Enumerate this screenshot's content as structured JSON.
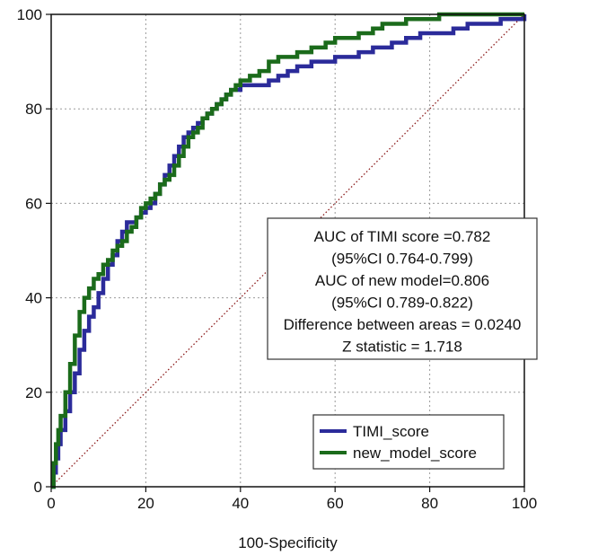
{
  "chart_data": {
    "type": "line",
    "title": "",
    "xlabel": "100-Specificity",
    "ylabel": "",
    "xlim": [
      0,
      100
    ],
    "ylim": [
      0,
      100
    ],
    "xticks": [
      0,
      20,
      40,
      60,
      80,
      100
    ],
    "yticks": [
      0,
      20,
      40,
      60,
      80,
      100
    ],
    "grid": true,
    "legend_position": "bottom-right",
    "annotation_lines": [
      "AUC of TIMI score =0.782",
      "(95%CI 0.764-0.799)",
      "AUC of new model=0.806",
      "(95%CI 0.789-0.822)",
      "Difference between areas = 0.0240",
      "Z statistic = 1.718"
    ],
    "reference_line": {
      "x": [
        0,
        100
      ],
      "y": [
        0,
        100
      ],
      "color": "#8b1a1a",
      "style": "dotted"
    },
    "series": [
      {
        "name": "TIMI_score",
        "color": "#2b2b9a",
        "x": [
          0,
          0.5,
          1,
          1.5,
          2,
          3,
          4,
          5,
          6,
          7,
          8,
          9,
          10,
          11,
          12,
          13,
          14,
          15,
          16,
          17,
          18,
          19,
          20,
          21,
          22,
          23,
          24,
          25,
          26,
          27,
          28,
          29,
          30,
          31,
          32,
          33,
          34,
          35,
          36,
          37,
          38,
          39,
          40,
          42,
          44,
          46,
          48,
          50,
          52,
          55,
          58,
          60,
          62,
          65,
          68,
          70,
          72,
          75,
          78,
          80,
          82,
          85,
          88,
          90,
          92,
          95,
          97,
          100
        ],
        "y": [
          0,
          3,
          6,
          9,
          12,
          16,
          20,
          24,
          29,
          33,
          36,
          38,
          41,
          44,
          47,
          49,
          52,
          54,
          56,
          56,
          57,
          58,
          59,
          60,
          62,
          64,
          66,
          68,
          70,
          72,
          74,
          75,
          76,
          77,
          78,
          79,
          80,
          81,
          82,
          83,
          84,
          84,
          85,
          85,
          85,
          86,
          87,
          88,
          89,
          90,
          90,
          91,
          91,
          92,
          93,
          93,
          94,
          95,
          96,
          96,
          96,
          97,
          98,
          98,
          98,
          99,
          99,
          100
        ]
      },
      {
        "name": "new_model_score",
        "color": "#1b6b1b",
        "x": [
          0,
          0.5,
          1,
          1.5,
          2,
          3,
          4,
          5,
          6,
          7,
          8,
          9,
          10,
          11,
          12,
          13,
          14,
          15,
          16,
          17,
          18,
          19,
          20,
          21,
          22,
          23,
          24,
          25,
          26,
          27,
          28,
          29,
          30,
          31,
          32,
          33,
          34,
          35,
          36,
          37,
          38,
          39,
          40,
          42,
          44,
          46,
          48,
          50,
          52,
          55,
          58,
          60,
          62,
          65,
          68,
          70,
          72,
          75,
          78,
          80,
          82,
          85,
          88,
          90,
          92,
          95,
          97,
          100
        ],
        "y": [
          0,
          5,
          9,
          12,
          15,
          20,
          26,
          32,
          37,
          40,
          42,
          44,
          45,
          47,
          48,
          50,
          51,
          52,
          54,
          55,
          57,
          59,
          60,
          61,
          62,
          64,
          65,
          66,
          68,
          70,
          72,
          74,
          75,
          76,
          78,
          79,
          80,
          81,
          82,
          83,
          84,
          85,
          86,
          87,
          88,
          90,
          91,
          91,
          92,
          93,
          94,
          95,
          95,
          96,
          97,
          98,
          98,
          99,
          99,
          99,
          100,
          100,
          100,
          100,
          100,
          100,
          100,
          100
        ]
      }
    ]
  }
}
